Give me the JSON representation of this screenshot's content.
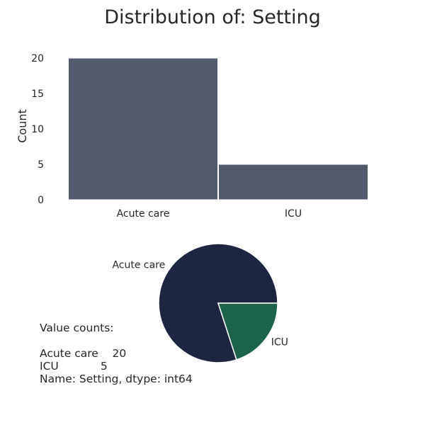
{
  "figure": {
    "title": "Distribution of: Setting",
    "value_counts_text": "Value counts:\n\nAcute care    20\nICU            5\nName: Setting, dtype: int64"
  },
  "colors": {
    "bar": "#525a6e",
    "pie": [
      "#1c2541",
      "#1b6349"
    ],
    "text": "#262626"
  },
  "chart_data": [
    {
      "type": "bar",
      "categories": [
        "Acute care",
        "ICU"
      ],
      "values": [
        20,
        5
      ],
      "title": "Distribution of: Setting",
      "xlabel": "",
      "ylabel": "Count",
      "ylim": [
        0,
        20
      ],
      "yticks": [
        0,
        5,
        10,
        15,
        20
      ],
      "grid": false
    },
    {
      "type": "pie",
      "labels": [
        "Acute care",
        "ICU"
      ],
      "values": [
        20,
        5
      ]
    }
  ]
}
